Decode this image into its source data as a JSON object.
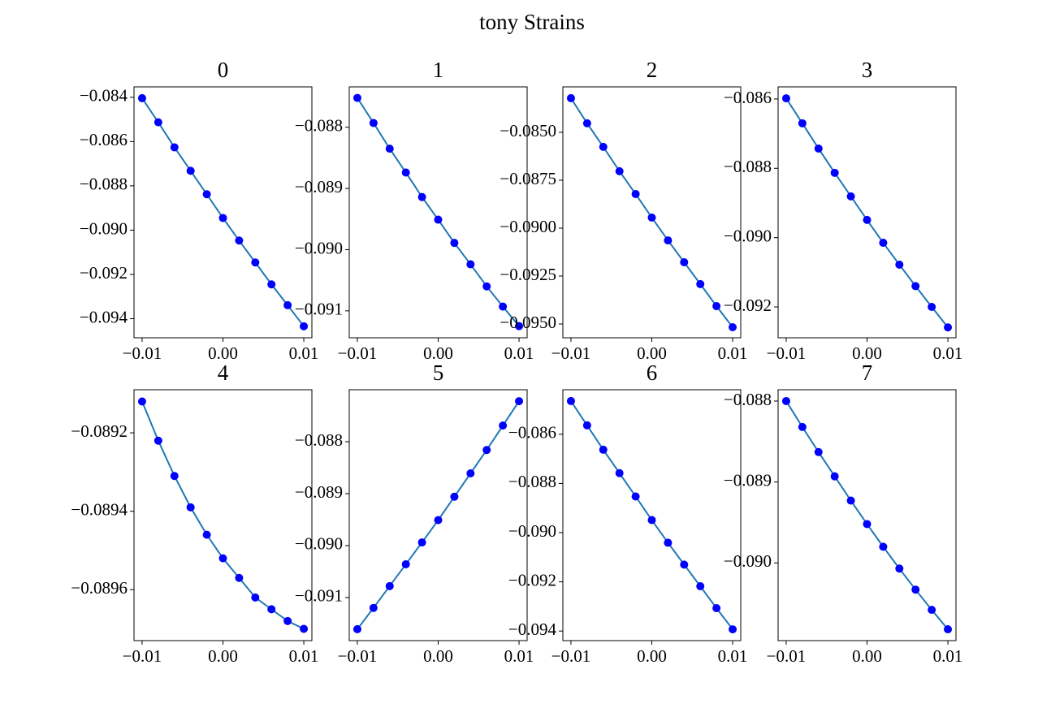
{
  "title": "tony Strains",
  "chart_data": [
    {
      "type": "line",
      "title": "0",
      "x": [
        -0.01,
        -0.008,
        -0.006,
        -0.004,
        -0.002,
        0,
        0.002,
        0.004,
        0.006,
        0.008,
        0.01
      ],
      "values": [
        -0.08404,
        -0.08513,
        -0.08626,
        -0.08732,
        -0.08838,
        -0.08945,
        -0.09047,
        -0.09146,
        -0.09245,
        -0.09339,
        -0.09434
      ],
      "color": "#1f77b4",
      "marker_color": "#0000ff",
      "xlim": [
        -0.011,
        0.011
      ],
      "ylim": [
        -0.09486,
        -0.08353
      ],
      "xticks": [
        {
          "value": -0.01,
          "label": "−0.01"
        },
        {
          "value": 0,
          "label": "0.00"
        },
        {
          "value": 0.01,
          "label": "0.01"
        }
      ],
      "yticks": [
        {
          "value": -0.084,
          "label": "−0.084"
        },
        {
          "value": -0.086,
          "label": "−0.086"
        },
        {
          "value": -0.088,
          "label": "−0.088"
        },
        {
          "value": -0.09,
          "label": "−0.090"
        },
        {
          "value": -0.092,
          "label": "−0.092"
        },
        {
          "value": -0.094,
          "label": "−0.094"
        }
      ]
    },
    {
      "type": "line",
      "title": "1",
      "x": [
        -0.01,
        -0.008,
        -0.006,
        -0.004,
        -0.002,
        0,
        0.002,
        0.004,
        0.006,
        0.008,
        0.01
      ],
      "values": [
        -0.08752,
        -0.08793,
        -0.08835,
        -0.08874,
        -0.08914,
        -0.08951,
        -0.08989,
        -0.09024,
        -0.0906,
        -0.09093,
        -0.09125
      ],
      "color": "#1f77b4",
      "marker_color": "#0000ff",
      "xlim": [
        -0.011,
        0.011
      ],
      "ylim": [
        -0.09144,
        -0.08734
      ],
      "xticks": [
        {
          "value": -0.01,
          "label": "−0.01"
        },
        {
          "value": 0,
          "label": "0.00"
        },
        {
          "value": 0.01,
          "label": "0.01"
        }
      ],
      "yticks": [
        {
          "value": -0.088,
          "label": "−0.088"
        },
        {
          "value": -0.089,
          "label": "−0.089"
        },
        {
          "value": -0.09,
          "label": "−0.090"
        },
        {
          "value": -0.091,
          "label": "−0.091"
        }
      ]
    },
    {
      "type": "line",
      "title": "2",
      "x": [
        -0.01,
        -0.008,
        -0.006,
        -0.004,
        -0.002,
        0,
        0.002,
        0.004,
        0.006,
        0.008,
        0.01
      ],
      "values": [
        -0.08322,
        -0.08453,
        -0.08576,
        -0.08703,
        -0.08822,
        -0.08945,
        -0.09064,
        -0.09178,
        -0.09292,
        -0.09407,
        -0.09517
      ],
      "color": "#1f77b4",
      "marker_color": "#0000ff",
      "xlim": [
        -0.011,
        0.011
      ],
      "ylim": [
        -0.09572,
        -0.08263
      ],
      "xticks": [
        {
          "value": -0.01,
          "label": "−0.01"
        },
        {
          "value": 0,
          "label": "0.00"
        },
        {
          "value": 0.01,
          "label": "0.01"
        }
      ],
      "yticks": [
        {
          "value": -0.085,
          "label": "−0.0850"
        },
        {
          "value": -0.0875,
          "label": "−0.0875"
        },
        {
          "value": -0.09,
          "label": "−0.0900"
        },
        {
          "value": -0.0925,
          "label": "−0.0925"
        },
        {
          "value": -0.095,
          "label": "−0.0950"
        }
      ]
    },
    {
      "type": "line",
      "title": "3",
      "x": [
        -0.01,
        -0.008,
        -0.006,
        -0.004,
        -0.002,
        0,
        0.002,
        0.004,
        0.006,
        0.008,
        0.01
      ],
      "values": [
        -0.08598,
        -0.0867,
        -0.08743,
        -0.08813,
        -0.08881,
        -0.08949,
        -0.09015,
        -0.09078,
        -0.0914,
        -0.092,
        -0.09259
      ],
      "color": "#1f77b4",
      "marker_color": "#0000ff",
      "xlim": [
        -0.011,
        0.011
      ],
      "ylim": [
        -0.09289,
        -0.08565
      ],
      "xticks": [
        {
          "value": -0.01,
          "label": "−0.01"
        },
        {
          "value": 0,
          "label": "0.00"
        },
        {
          "value": 0.01,
          "label": "0.01"
        }
      ],
      "yticks": [
        {
          "value": -0.086,
          "label": "−0.086"
        },
        {
          "value": -0.088,
          "label": "−0.088"
        },
        {
          "value": -0.09,
          "label": "−0.090"
        },
        {
          "value": -0.092,
          "label": "−0.092"
        }
      ]
    },
    {
      "type": "line",
      "title": "4",
      "x": [
        -0.01,
        -0.008,
        -0.006,
        -0.004,
        -0.002,
        0,
        0.002,
        0.004,
        0.006,
        0.008,
        0.01
      ],
      "values": [
        -0.08912,
        -0.08922,
        -0.08931,
        -0.08939,
        -0.08946,
        -0.08952,
        -0.08957,
        -0.08962,
        -0.08965,
        -0.08968,
        -0.0897
      ],
      "color": "#1f77b4",
      "marker_color": "#0000ff",
      "xlim": [
        -0.011,
        0.011
      ],
      "ylim": [
        -0.08973,
        -0.08909
      ],
      "xticks": [
        {
          "value": -0.01,
          "label": "−0.01"
        },
        {
          "value": 0,
          "label": "0.00"
        },
        {
          "value": 0.01,
          "label": "0.01"
        }
      ],
      "yticks": [
        {
          "value": -0.0892,
          "label": "−0.0892"
        },
        {
          "value": -0.0894,
          "label": "−0.0894"
        },
        {
          "value": -0.0896,
          "label": "−0.0896"
        }
      ]
    },
    {
      "type": "line",
      "title": "5",
      "x": [
        -0.01,
        -0.008,
        -0.006,
        -0.004,
        -0.002,
        0,
        0.002,
        0.004,
        0.006,
        0.008,
        0.01
      ],
      "values": [
        -0.09161,
        -0.0912,
        -0.09078,
        -0.09036,
        -0.08994,
        -0.08951,
        -0.08906,
        -0.08861,
        -0.08816,
        -0.08769,
        -0.08722
      ],
      "color": "#1f77b4",
      "marker_color": "#0000ff",
      "xlim": [
        -0.011,
        0.011
      ],
      "ylim": [
        -0.09183,
        -0.087
      ],
      "xticks": [
        {
          "value": -0.01,
          "label": "−0.01"
        },
        {
          "value": 0,
          "label": "0.00"
        },
        {
          "value": 0.01,
          "label": "0.01"
        }
      ],
      "yticks": [
        {
          "value": -0.088,
          "label": "−0.088"
        },
        {
          "value": -0.089,
          "label": "−0.089"
        },
        {
          "value": -0.09,
          "label": "−0.090"
        },
        {
          "value": -0.091,
          "label": "−0.091"
        }
      ]
    },
    {
      "type": "line",
      "title": "6",
      "x": [
        -0.01,
        -0.008,
        -0.006,
        -0.004,
        -0.002,
        0,
        0.002,
        0.004,
        0.006,
        0.008,
        0.01
      ],
      "values": [
        -0.08465,
        -0.08564,
        -0.08663,
        -0.08758,
        -0.08853,
        -0.08949,
        -0.09041,
        -0.0913,
        -0.09218,
        -0.09307,
        -0.09393
      ],
      "color": "#1f77b4",
      "marker_color": "#0000ff",
      "xlim": [
        -0.011,
        0.011
      ],
      "ylim": [
        -0.09439,
        -0.08419
      ],
      "xticks": [
        {
          "value": -0.01,
          "label": "−0.01"
        },
        {
          "value": 0,
          "label": "0.00"
        },
        {
          "value": 0.01,
          "label": "0.01"
        }
      ],
      "yticks": [
        {
          "value": -0.086,
          "label": "−0.086"
        },
        {
          "value": -0.088,
          "label": "−0.088"
        },
        {
          "value": -0.09,
          "label": "−0.090"
        },
        {
          "value": -0.092,
          "label": "−0.092"
        },
        {
          "value": -0.094,
          "label": "−0.094"
        }
      ]
    },
    {
      "type": "line",
      "title": "7",
      "x": [
        -0.01,
        -0.008,
        -0.006,
        -0.004,
        -0.002,
        0,
        0.002,
        0.004,
        0.006,
        0.008,
        0.01
      ],
      "values": [
        -0.088,
        -0.08832,
        -0.08863,
        -0.08893,
        -0.08923,
        -0.08952,
        -0.0898,
        -0.09007,
        -0.09033,
        -0.09058,
        -0.09082
      ],
      "color": "#1f77b4",
      "marker_color": "#0000ff",
      "xlim": [
        -0.011,
        0.011
      ],
      "ylim": [
        -0.09096,
        -0.08786
      ],
      "xticks": [
        {
          "value": -0.01,
          "label": "−0.01"
        },
        {
          "value": 0,
          "label": "0.00"
        },
        {
          "value": 0.01,
          "label": "0.01"
        }
      ],
      "yticks": [
        {
          "value": -0.088,
          "label": "−0.088"
        },
        {
          "value": -0.089,
          "label": "−0.089"
        },
        {
          "value": -0.09,
          "label": "−0.090"
        }
      ]
    }
  ]
}
